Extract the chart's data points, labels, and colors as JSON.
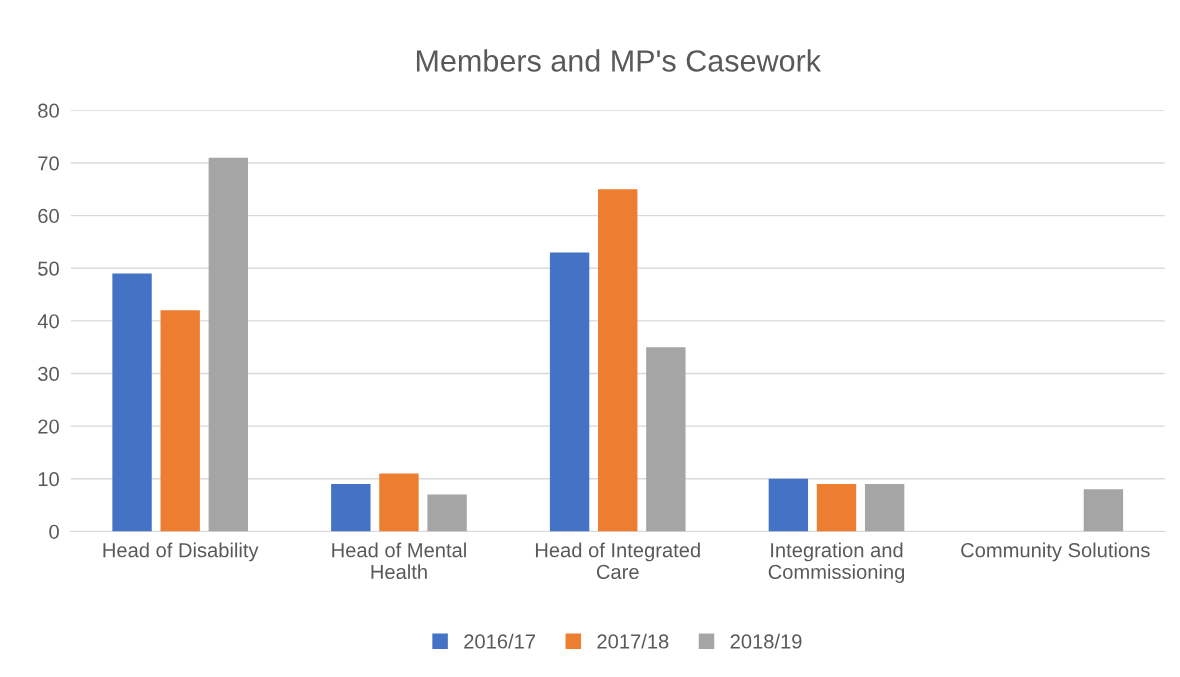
{
  "chart_data": {
    "type": "bar",
    "title": "Members and MP's Casework",
    "categories": [
      "Head of Disability",
      "Head of Mental\nHealth",
      "Head of Integrated\nCare",
      "Integration and\nCommissioning",
      "Community Solutions"
    ],
    "series": [
      {
        "name": "2016/17",
        "color": "#4472c4",
        "values": [
          49,
          9,
          53,
          10,
          null
        ]
      },
      {
        "name": "2017/18",
        "color": "#ed7d31",
        "values": [
          42,
          11,
          65,
          9,
          null
        ]
      },
      {
        "name": "2018/19",
        "color": "#a5a5a5",
        "values": [
          71,
          7,
          35,
          9,
          8
        ]
      }
    ],
    "ylim": [
      0,
      80
    ],
    "yticks": [
      0,
      10,
      20,
      30,
      40,
      50,
      60,
      70,
      80
    ],
    "grid": "y",
    "legend": "bottom"
  }
}
